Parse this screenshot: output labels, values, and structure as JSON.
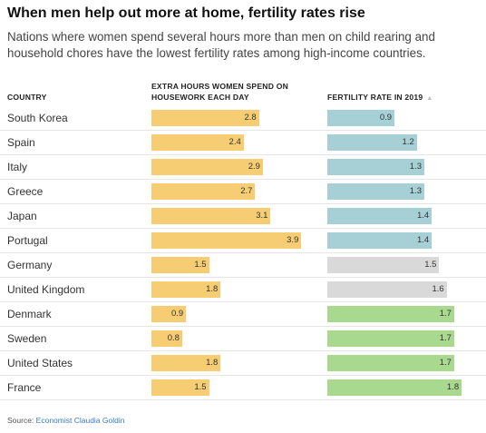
{
  "header": {
    "title": "When men help out more at home, fertility rates rise",
    "subtitle": "Nations where women spend several hours more than men on child rearing and household chores have the lowest fertility rates among high-income countries."
  },
  "columns": {
    "country": "COUNTRY",
    "housework": "EXTRA HOURS WOMEN SPEND ON HOUSEWORK EACH DAY",
    "fertility": "FERTILITY RATE IN 2019"
  },
  "sort_icon": "sort-ascending-icon",
  "source": {
    "label": "Source:",
    "text": "Economist Claudia Goldin"
  },
  "colors": {
    "housework": "#f6cd73",
    "fertility_blue": "#a7d0d6",
    "fertility_gray": "#d9d9d9",
    "fertility_green": "#a9d88f"
  },
  "chart_data": {
    "type": "table",
    "columns": [
      "COUNTRY",
      "EXTRA HOURS WOMEN SPEND ON HOUSEWORK EACH DAY",
      "FERTILITY RATE IN 2019"
    ],
    "rows": [
      {
        "country": "South Korea",
        "housework": 2.8,
        "fertility": 0.9,
        "group": "blue"
      },
      {
        "country": "Spain",
        "housework": 2.4,
        "fertility": 1.2,
        "group": "blue"
      },
      {
        "country": "Italy",
        "housework": 2.9,
        "fertility": 1.3,
        "group": "blue"
      },
      {
        "country": "Greece",
        "housework": 2.7,
        "fertility": 1.3,
        "group": "blue"
      },
      {
        "country": "Japan",
        "housework": 3.1,
        "fertility": 1.4,
        "group": "blue"
      },
      {
        "country": "Portugal",
        "housework": 3.9,
        "fertility": 1.4,
        "group": "blue"
      },
      {
        "country": "Germany",
        "housework": 1.5,
        "fertility": 1.5,
        "group": "gray"
      },
      {
        "country": "United Kingdom",
        "housework": 1.8,
        "fertility": 1.6,
        "group": "gray"
      },
      {
        "country": "Denmark",
        "housework": 0.9,
        "fertility": 1.7,
        "group": "green"
      },
      {
        "country": "Sweden",
        "housework": 0.8,
        "fertility": 1.7,
        "group": "green"
      },
      {
        "country": "United States",
        "housework": 1.8,
        "fertility": 1.7,
        "group": "green"
      },
      {
        "country": "France",
        "housework": 1.5,
        "fertility": 1.8,
        "group": "green"
      }
    ]
  }
}
